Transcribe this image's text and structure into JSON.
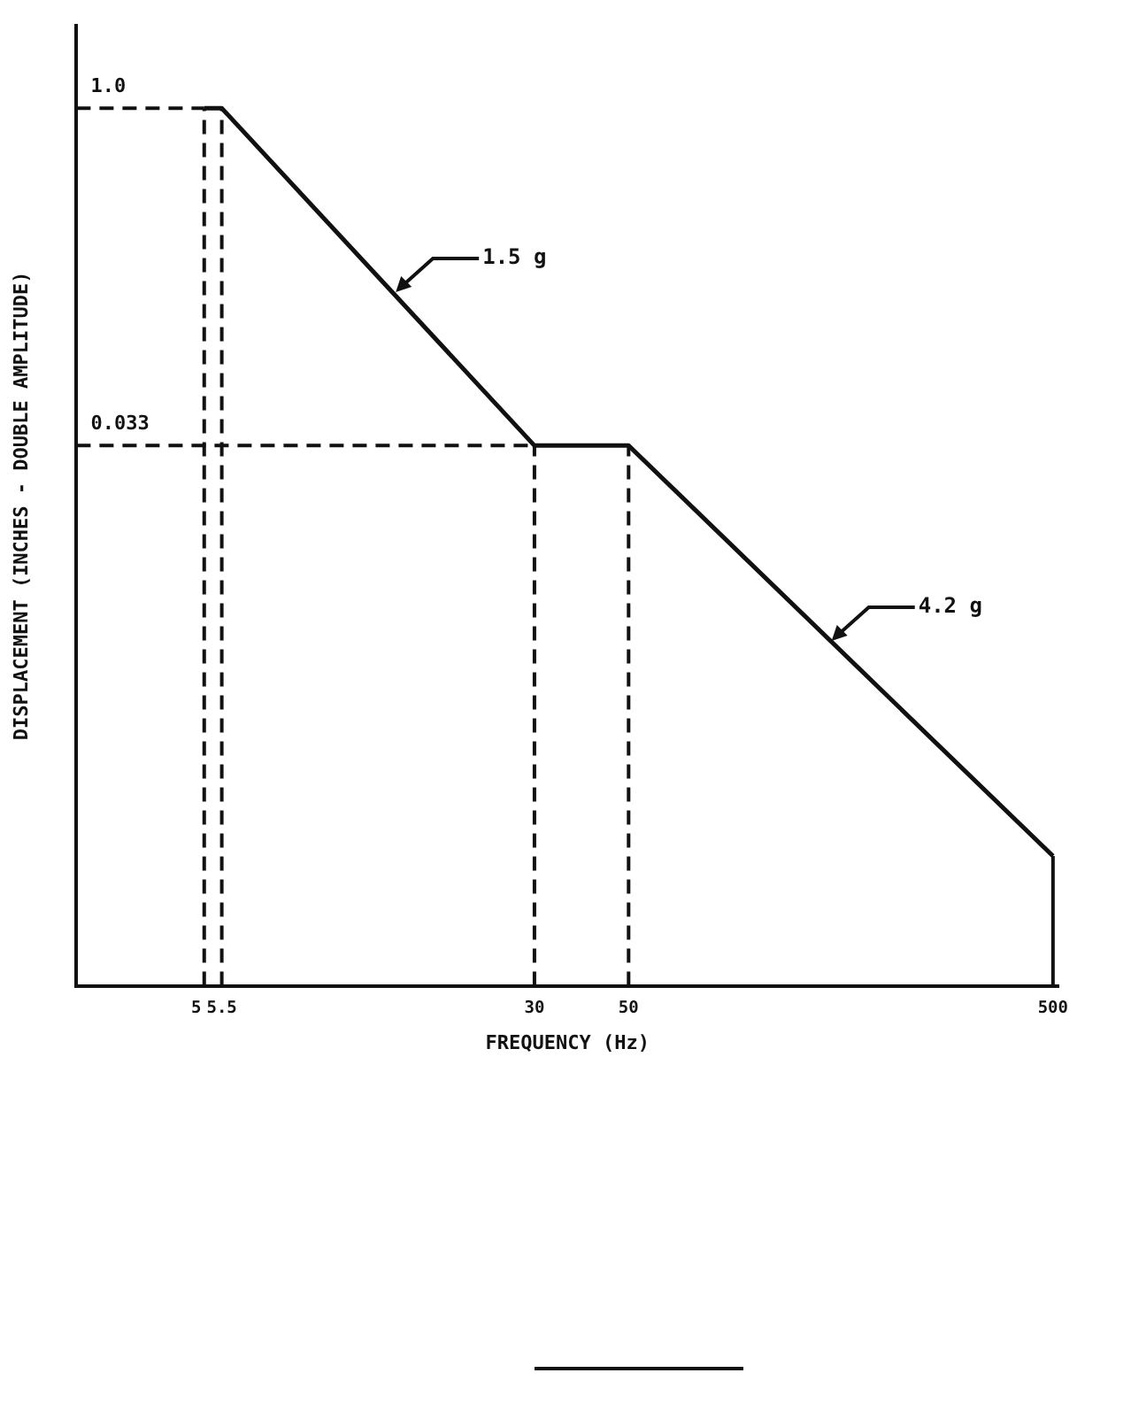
{
  "chart_data": {
    "type": "line",
    "xlabel": "FREQUENCY (Hz)",
    "ylabel": "DISPLACEMENT (INCHES - DOUBLE AMPLITUDE)",
    "log": "xy",
    "x": [
      5,
      5.5,
      30,
      50,
      500
    ],
    "series": [
      {
        "color": "#111111",
        "values": [
          1.0,
          1.0,
          0.033,
          0.033,
          0.00052
        ]
      }
    ],
    "xlim": [
      2.5,
      515
    ],
    "ylim": [
      0.00014,
      2.3
    ],
    "xticks": [
      5,
      5.5,
      30,
      50,
      500
    ],
    "yticks": [
      {
        "value": 1,
        "label": "1.0"
      },
      0.033
    ],
    "ref_lines": [
      {
        "axis": "x",
        "value": 5,
        "line_style": "dashed"
      },
      {
        "axis": "x",
        "value": 5.5,
        "line_style": "dashed"
      },
      {
        "axis": "x",
        "value": 30,
        "line_style": "dashed"
      },
      {
        "axis": "x",
        "value": 50,
        "line_style": "dashed"
      },
      {
        "axis": "x",
        "value": 500,
        "line_style": "solid"
      },
      {
        "axis": "y",
        "value": 1,
        "line_style": "dashed"
      },
      {
        "axis": "y",
        "value": 0.033,
        "line_style": "dashed"
      }
    ],
    "annotations": [
      {
        "text": "1.5 g",
        "x": 14,
        "y": 0.153
      },
      {
        "text": "4.2 g",
        "x": 149,
        "y": 0.0045
      }
    ],
    "grid": false,
    "legend": false,
    "marker": "none",
    "line_style": "solid"
  }
}
